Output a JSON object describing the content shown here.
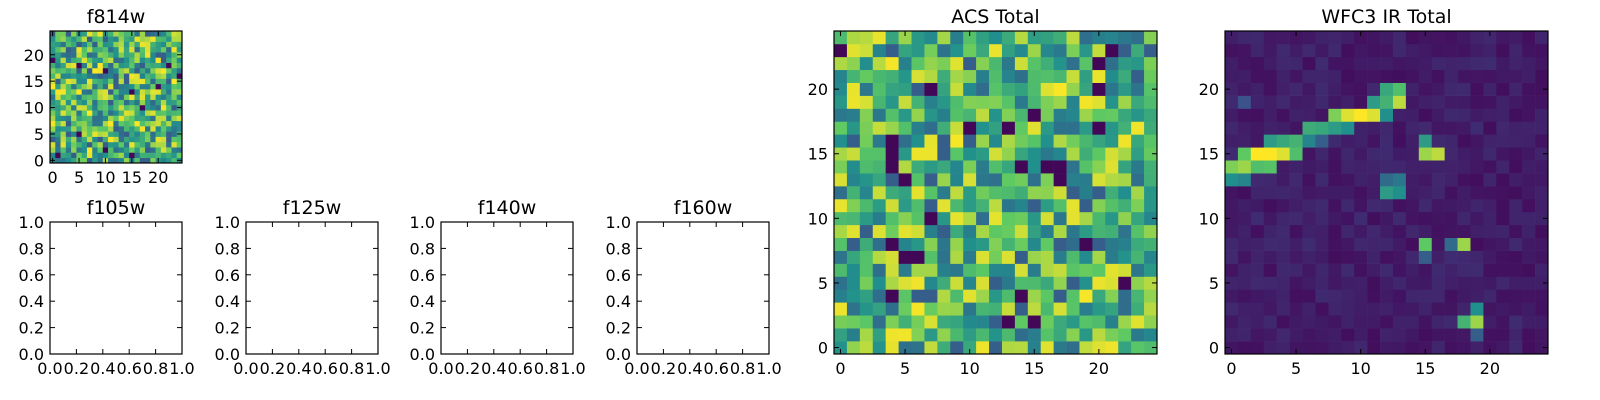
{
  "figure": {
    "background": "#ffffff",
    "colormap": "viridis",
    "colormap_stops": [
      "#440154",
      "#3b528b",
      "#21908d",
      "#5dc963",
      "#fde725"
    ]
  },
  "chart_data": [
    {
      "id": "f814w",
      "type": "heatmap",
      "title": "f814w",
      "xlabel": "",
      "ylabel": "",
      "xlim": [
        -0.5,
        24.5
      ],
      "ylim": [
        -0.5,
        24.5
      ],
      "xticks": [
        0,
        5,
        10,
        15,
        20
      ],
      "xtick_labels": [
        "0",
        "5",
        "10",
        "15",
        "20"
      ],
      "yticks": [
        0,
        5,
        10,
        15,
        20
      ],
      "ytick_labels": [
        "0",
        "5",
        "10",
        "15",
        "20"
      ],
      "grid_size": [
        25,
        25
      ],
      "value_range": [
        0,
        1
      ],
      "pattern": "uniform-noise",
      "seed": 11
    },
    {
      "id": "f105w",
      "type": "empty",
      "title": "f105w",
      "xlabel": "",
      "ylabel": "",
      "xlim": [
        0,
        1
      ],
      "ylim": [
        0,
        1
      ],
      "xticks": [
        0,
        0.2,
        0.4,
        0.6,
        0.8,
        1.0
      ],
      "xtick_labels": [
        "0.0",
        "0.2",
        "0.4",
        "0.6",
        "0.8",
        "1.0"
      ],
      "yticks": [
        0,
        0.2,
        0.4,
        0.6,
        0.8,
        1.0
      ],
      "ytick_labels": [
        "0.0",
        "0.2",
        "0.4",
        "0.6",
        "0.8",
        "1.0"
      ]
    },
    {
      "id": "f125w",
      "type": "empty",
      "title": "f125w",
      "xlabel": "",
      "ylabel": "",
      "xlim": [
        0,
        1
      ],
      "ylim": [
        0,
        1
      ],
      "xticks": [
        0,
        0.2,
        0.4,
        0.6,
        0.8,
        1.0
      ],
      "xtick_labels": [
        "0.0",
        "0.2",
        "0.4",
        "0.6",
        "0.8",
        "1.0"
      ],
      "yticks": [
        0,
        0.2,
        0.4,
        0.6,
        0.8,
        1.0
      ],
      "ytick_labels": [
        "0.0",
        "0.2",
        "0.4",
        "0.6",
        "0.8",
        "1.0"
      ]
    },
    {
      "id": "f140w",
      "type": "empty",
      "title": "f140w",
      "xlabel": "",
      "ylabel": "",
      "xlim": [
        0,
        1
      ],
      "ylim": [
        0,
        1
      ],
      "xticks": [
        0,
        0.2,
        0.4,
        0.6,
        0.8,
        1.0
      ],
      "xtick_labels": [
        "0.0",
        "0.2",
        "0.4",
        "0.6",
        "0.8",
        "1.0"
      ],
      "yticks": [
        0,
        0.2,
        0.4,
        0.6,
        0.8,
        1.0
      ],
      "ytick_labels": [
        "0.0",
        "0.2",
        "0.4",
        "0.6",
        "0.8",
        "1.0"
      ]
    },
    {
      "id": "f160w",
      "type": "empty",
      "title": "f160w",
      "xlabel": "",
      "ylabel": "",
      "xlim": [
        0,
        1
      ],
      "ylim": [
        0,
        1
      ],
      "xticks": [
        0,
        0.2,
        0.4,
        0.6,
        0.8,
        1.0
      ],
      "xtick_labels": [
        "0.0",
        "0.2",
        "0.4",
        "0.6",
        "0.8",
        "1.0"
      ],
      "yticks": [
        0,
        0.2,
        0.4,
        0.6,
        0.8,
        1.0
      ],
      "ytick_labels": [
        "0.0",
        "0.2",
        "0.4",
        "0.6",
        "0.8",
        "1.0"
      ]
    },
    {
      "id": "acs_total",
      "type": "heatmap",
      "title": "ACS Total",
      "xlabel": "",
      "ylabel": "",
      "xlim": [
        -0.5,
        24.5
      ],
      "ylim": [
        -0.5,
        24.5
      ],
      "xticks": [
        0,
        5,
        10,
        15,
        20
      ],
      "xtick_labels": [
        "0",
        "5",
        "10",
        "15",
        "20"
      ],
      "yticks": [
        0,
        5,
        10,
        15,
        20
      ],
      "ytick_labels": [
        "0",
        "5",
        "10",
        "15",
        "20"
      ],
      "grid_size": [
        25,
        25
      ],
      "value_range": [
        0,
        1
      ],
      "pattern": "uniform-noise",
      "seed": 29
    },
    {
      "id": "wfc3_ir_total",
      "type": "heatmap",
      "title": "WFC3 IR Total",
      "xlabel": "",
      "ylabel": "",
      "xlim": [
        -0.5,
        24.5
      ],
      "ylim": [
        -0.5,
        24.5
      ],
      "xticks": [
        0,
        5,
        10,
        15,
        20
      ],
      "xtick_labels": [
        "0",
        "5",
        "10",
        "15",
        "20"
      ],
      "yticks": [
        0,
        5,
        10,
        15,
        20
      ],
      "ytick_labels": [
        "0",
        "5",
        "10",
        "15",
        "20"
      ],
      "grid_size": [
        25,
        25
      ],
      "value_range": [
        0,
        1
      ],
      "pattern": "low-background",
      "seed": 53,
      "bright_pixels": [
        {
          "x": 0,
          "y": 13,
          "v": 0.5
        },
        {
          "x": 1,
          "y": 13,
          "v": 0.45
        },
        {
          "x": 0,
          "y": 14,
          "v": 0.8
        },
        {
          "x": 1,
          "y": 14,
          "v": 0.85
        },
        {
          "x": 2,
          "y": 14,
          "v": 0.7
        },
        {
          "x": 3,
          "y": 14,
          "v": 0.72
        },
        {
          "x": 1,
          "y": 15,
          "v": 0.75
        },
        {
          "x": 2,
          "y": 15,
          "v": 1.0
        },
        {
          "x": 3,
          "y": 15,
          "v": 1.0
        },
        {
          "x": 4,
          "y": 15,
          "v": 0.95
        },
        {
          "x": 5,
          "y": 15,
          "v": 0.7
        },
        {
          "x": 3,
          "y": 16,
          "v": 0.55
        },
        {
          "x": 4,
          "y": 16,
          "v": 0.6
        },
        {
          "x": 5,
          "y": 16,
          "v": 0.65
        },
        {
          "x": 6,
          "y": 16,
          "v": 0.45
        },
        {
          "x": 7,
          "y": 16,
          "v": 0.3
        },
        {
          "x": 6,
          "y": 17,
          "v": 0.62
        },
        {
          "x": 7,
          "y": 17,
          "v": 0.6
        },
        {
          "x": 8,
          "y": 17,
          "v": 0.55
        },
        {
          "x": 9,
          "y": 17,
          "v": 0.5
        },
        {
          "x": 8,
          "y": 18,
          "v": 0.8
        },
        {
          "x": 9,
          "y": 18,
          "v": 0.95
        },
        {
          "x": 10,
          "y": 18,
          "v": 1.0
        },
        {
          "x": 11,
          "y": 18,
          "v": 0.95
        },
        {
          "x": 12,
          "y": 18,
          "v": 0.5
        },
        {
          "x": 11,
          "y": 19,
          "v": 0.55
        },
        {
          "x": 12,
          "y": 19,
          "v": 0.65
        },
        {
          "x": 13,
          "y": 19,
          "v": 0.9
        },
        {
          "x": 12,
          "y": 20,
          "v": 0.6
        },
        {
          "x": 13,
          "y": 20,
          "v": 0.7
        },
        {
          "x": 1,
          "y": 19,
          "v": 0.25
        },
        {
          "x": 12,
          "y": 12,
          "v": 0.55
        },
        {
          "x": 13,
          "y": 12,
          "v": 0.5
        },
        {
          "x": 12,
          "y": 13,
          "v": 0.35
        },
        {
          "x": 13,
          "y": 13,
          "v": 0.4
        },
        {
          "x": 15,
          "y": 15,
          "v": 0.85
        },
        {
          "x": 16,
          "y": 15,
          "v": 0.9
        },
        {
          "x": 15,
          "y": 16,
          "v": 0.55
        },
        {
          "x": 15,
          "y": 8,
          "v": 0.75
        },
        {
          "x": 18,
          "y": 8,
          "v": 0.85
        },
        {
          "x": 17,
          "y": 8,
          "v": 0.35
        },
        {
          "x": 15,
          "y": 7,
          "v": 0.3
        },
        {
          "x": 19,
          "y": 3,
          "v": 0.5
        },
        {
          "x": 19,
          "y": 2,
          "v": 0.85
        },
        {
          "x": 18,
          "y": 2,
          "v": 0.65
        },
        {
          "x": 19,
          "y": 1,
          "v": 0.3
        }
      ]
    }
  ]
}
